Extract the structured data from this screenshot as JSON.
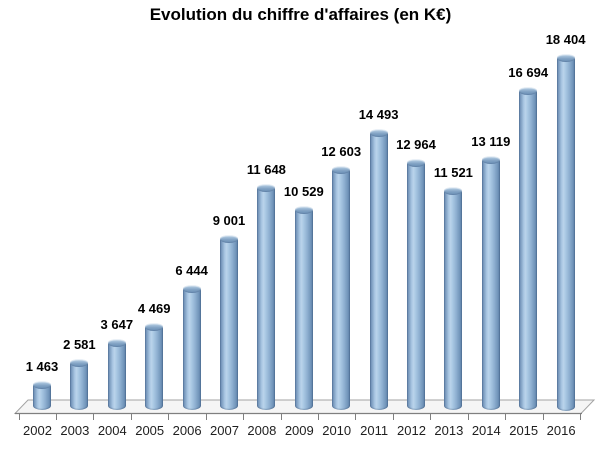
{
  "chart_data": {
    "type": "bar",
    "bar_style": "3d-cylinder",
    "title": "Evolution du chiffre d'affaires (en K€)",
    "categories": [
      "2002",
      "2003",
      "2004",
      "2005",
      "2006",
      "2007",
      "2008",
      "2009",
      "2010",
      "2011",
      "2012",
      "2013",
      "2014",
      "2015",
      "2016"
    ],
    "values": [
      1463,
      2581,
      3647,
      4469,
      6444,
      9001,
      11648,
      10529,
      12603,
      14493,
      12964,
      11521,
      13119,
      16694,
      18404
    ],
    "labels": [
      "1 463",
      "2 581",
      "3 647",
      "4 469",
      "6 444",
      "9 001",
      "11 648",
      "10 529",
      "12 603",
      "14 493",
      "12 964",
      "11 521",
      "13 119",
      "16 694",
      "18 404"
    ],
    "xlabel": "",
    "ylabel": "",
    "ylim": [
      0,
      18404
    ],
    "grid": false,
    "legend": false,
    "data_labels_position": "outside-end",
    "colors": {
      "bar_edge_dark": "#54749b",
      "bar_highlight": "#bad4eb",
      "bar_top_face": "#7d9fc1",
      "floor_fill": "#f5f5f5",
      "floor_stroke": "#a3a3a3",
      "axis_line": "#7f7f7f",
      "title_color": "#000000",
      "label_color": "#000000",
      "background": "#ffffff"
    }
  }
}
